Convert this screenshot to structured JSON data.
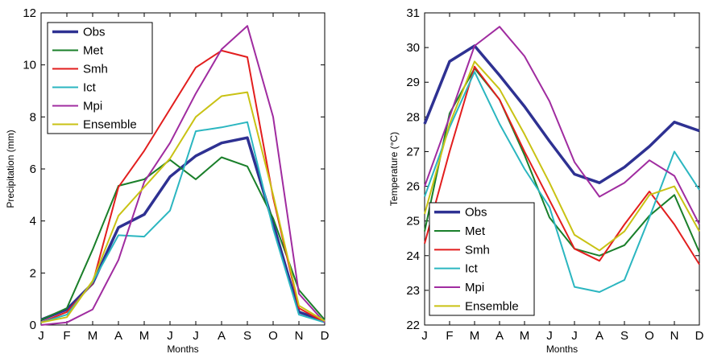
{
  "chart_data": [
    {
      "type": "line",
      "title": "",
      "xlabel": "Months",
      "ylabel": "Precipitation (mm)",
      "categories": [
        "J",
        "F",
        "M",
        "A",
        "M",
        "J",
        "J",
        "A",
        "S",
        "O",
        "N",
        "D"
      ],
      "ylim": [
        0,
        12
      ],
      "yticks": [
        0,
        2,
        4,
        6,
        8,
        10,
        12
      ],
      "grid": false,
      "legend_position": "top-left",
      "series": [
        {
          "name": "Obs",
          "color": "#2e3192",
          "values": [
            0.2,
            0.6,
            1.6,
            3.75,
            4.25,
            5.7,
            6.5,
            7.0,
            7.2,
            3.9,
            0.5,
            0.15
          ]
        },
        {
          "name": "Met",
          "color": "#1a7f2a",
          "values": [
            0.2,
            0.65,
            2.9,
            5.35,
            5.6,
            6.35,
            5.6,
            6.45,
            6.1,
            4.1,
            1.35,
            0.2
          ]
        },
        {
          "name": "Smh",
          "color": "#e21e1e",
          "values": [
            0.1,
            0.5,
            1.6,
            5.3,
            6.7,
            8.3,
            9.9,
            10.55,
            10.3,
            4.9,
            0.65,
            0.1
          ]
        },
        {
          "name": "Ict",
          "color": "#2bb6c0",
          "values": [
            0.1,
            0.4,
            1.65,
            3.45,
            3.4,
            4.4,
            7.45,
            7.6,
            7.8,
            3.7,
            0.4,
            0.1
          ]
        },
        {
          "name": "Mpi",
          "color": "#a02ca0",
          "values": [
            0.0,
            0.1,
            0.6,
            2.5,
            5.5,
            7.0,
            8.9,
            10.6,
            11.5,
            8.0,
            1.2,
            0.1
          ]
        },
        {
          "name": "Ensemble",
          "color": "#c9c214",
          "values": [
            0.1,
            0.3,
            1.7,
            4.2,
            5.3,
            6.4,
            8.0,
            8.8,
            8.95,
            5.0,
            0.75,
            0.15
          ]
        }
      ]
    },
    {
      "type": "line",
      "title": "",
      "xlabel": "Months",
      "ylabel": "Temperature (°C)",
      "categories": [
        "J",
        "F",
        "M",
        "A",
        "M",
        "J",
        "J",
        "A",
        "S",
        "O",
        "N",
        "D"
      ],
      "ylim": [
        22,
        31
      ],
      "yticks": [
        22,
        23,
        24,
        25,
        26,
        27,
        28,
        29,
        30,
        31
      ],
      "grid": false,
      "legend_position": "bottom-left",
      "series": [
        {
          "name": "Obs",
          "color": "#2e3192",
          "values": [
            27.8,
            29.6,
            30.05,
            29.2,
            28.3,
            27.3,
            26.35,
            26.1,
            26.55,
            27.15,
            27.85,
            27.6
          ]
        },
        {
          "name": "Met",
          "color": "#1a7f2a",
          "values": [
            24.7,
            28.1,
            29.4,
            28.5,
            26.9,
            25.1,
            24.2,
            24.0,
            24.3,
            25.15,
            25.75,
            24.1
          ]
        },
        {
          "name": "Smh",
          "color": "#e21e1e",
          "values": [
            24.35,
            27.0,
            29.45,
            28.5,
            27.0,
            25.6,
            24.2,
            23.85,
            24.9,
            25.85,
            24.9,
            23.75
          ]
        },
        {
          "name": "Ict",
          "color": "#2bb6c0",
          "values": [
            25.7,
            27.7,
            29.3,
            27.8,
            26.5,
            25.4,
            23.1,
            22.95,
            23.3,
            25.1,
            27.0,
            25.9
          ]
        },
        {
          "name": "Mpi",
          "color": "#a02ca0",
          "values": [
            26.0,
            28.0,
            30.05,
            30.6,
            29.75,
            28.45,
            26.7,
            25.7,
            26.1,
            26.75,
            26.3,
            24.9
          ]
        },
        {
          "name": "Ensemble",
          "color": "#c9c214",
          "values": [
            25.2,
            27.8,
            29.6,
            28.8,
            27.5,
            26.1,
            24.6,
            24.15,
            24.7,
            25.75,
            26.0,
            24.7
          ]
        }
      ]
    }
  ]
}
